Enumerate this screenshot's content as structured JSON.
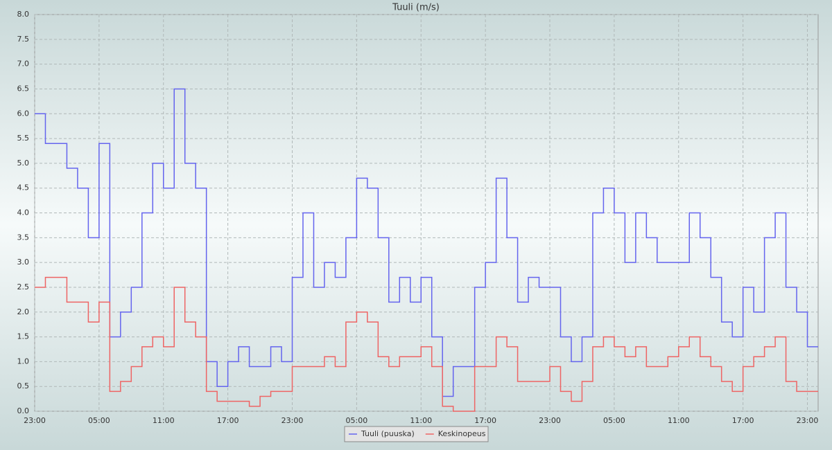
{
  "chart_data": {
    "type": "step",
    "title": "Tuuli (m/s)",
    "x": [
      0,
      1,
      2,
      3,
      4,
      5,
      6,
      7,
      8,
      9,
      10,
      11,
      12,
      13,
      14,
      15,
      16,
      17,
      18,
      19,
      20,
      21,
      22,
      23,
      24,
      25,
      26,
      27,
      28,
      29,
      30,
      31,
      32,
      33,
      34,
      35,
      36,
      37,
      38,
      39,
      40,
      41,
      42,
      43,
      44,
      45,
      46,
      47,
      48,
      49,
      50,
      51,
      52,
      53,
      54,
      55,
      56,
      57,
      58,
      59,
      60,
      61,
      62,
      63,
      64,
      65,
      66,
      67,
      68,
      69,
      70,
      71,
      72
    ],
    "series": [
      {
        "name": "Tuuli (puuska)",
        "color": "#6464ee",
        "values": [
          6.0,
          5.4,
          5.4,
          4.9,
          4.5,
          3.5,
          5.4,
          1.5,
          2.0,
          2.5,
          4.0,
          5.0,
          4.5,
          6.5,
          5.0,
          4.5,
          1.0,
          0.5,
          1.0,
          1.3,
          0.9,
          0.9,
          1.3,
          1.0,
          2.7,
          4.0,
          2.5,
          3.0,
          2.7,
          3.5,
          4.7,
          4.5,
          3.5,
          2.2,
          2.7,
          2.2,
          2.7,
          1.5,
          0.3,
          0.9,
          0.9,
          2.5,
          3.0,
          4.7,
          3.5,
          2.2,
          2.7,
          2.5,
          2.5,
          1.5,
          1.0,
          1.5,
          4.0,
          4.5,
          4.0,
          3.0,
          4.0,
          3.5,
          3.0,
          3.0,
          3.0,
          4.0,
          3.5,
          2.7,
          1.8,
          1.5,
          2.5,
          2.0,
          3.5,
          4.0,
          2.5,
          2.0,
          1.3
        ]
      },
      {
        "name": "Keskinopeus",
        "color": "#ee6464",
        "values": [
          2.5,
          2.7,
          2.7,
          2.2,
          2.2,
          1.8,
          2.2,
          0.4,
          0.6,
          0.9,
          1.3,
          1.5,
          1.3,
          2.5,
          1.8,
          1.5,
          0.4,
          0.2,
          0.2,
          0.2,
          0.1,
          0.3,
          0.4,
          0.4,
          0.9,
          0.9,
          0.9,
          1.1,
          0.9,
          1.8,
          2.0,
          1.8,
          1.1,
          0.9,
          1.1,
          1.1,
          1.3,
          0.9,
          0.1,
          0.0,
          0.0,
          0.9,
          0.9,
          1.5,
          1.3,
          0.6,
          0.6,
          0.6,
          0.9,
          0.4,
          0.2,
          0.6,
          1.3,
          1.5,
          1.3,
          1.1,
          1.3,
          0.9,
          0.9,
          1.1,
          1.3,
          1.5,
          1.1,
          0.9,
          0.6,
          0.4,
          0.9,
          1.1,
          1.3,
          1.5,
          0.6,
          0.4,
          0.4
        ]
      }
    ],
    "xlim": [
      0,
      73
    ],
    "xticks": [
      {
        "value": 0,
        "label": "23:00"
      },
      {
        "value": 6,
        "label": "05:00"
      },
      {
        "value": 12,
        "label": "11:00"
      },
      {
        "value": 18,
        "label": "17:00"
      },
      {
        "value": 24,
        "label": "23:00"
      },
      {
        "value": 30,
        "label": "05:00"
      },
      {
        "value": 36,
        "label": "11:00"
      },
      {
        "value": 42,
        "label": "17:00"
      },
      {
        "value": 48,
        "label": "23:00"
      },
      {
        "value": 54,
        "label": "05:00"
      },
      {
        "value": 60,
        "label": "11:00"
      },
      {
        "value": 66,
        "label": "17:00"
      },
      {
        "value": 72,
        "label": "23:00"
      }
    ],
    "ylim": [
      0,
      8
    ],
    "yticks": [
      {
        "value": 0,
        "label": "0.0"
      },
      {
        "value": 0.5,
        "label": "0.5"
      },
      {
        "value": 1,
        "label": "1.0"
      },
      {
        "value": 1.5,
        "label": "1.5"
      },
      {
        "value": 2,
        "label": "2.0"
      },
      {
        "value": 2.5,
        "label": "2.5"
      },
      {
        "value": 3,
        "label": "3.0"
      },
      {
        "value": 3.5,
        "label": "3.5"
      },
      {
        "value": 4,
        "label": "4.0"
      },
      {
        "value": 4.5,
        "label": "4.5"
      },
      {
        "value": 5,
        "label": "5.0"
      },
      {
        "value": 5.5,
        "label": "5.5"
      },
      {
        "value": 6,
        "label": "6.0"
      },
      {
        "value": 6.5,
        "label": "6.5"
      },
      {
        "value": 7,
        "label": "7.0"
      },
      {
        "value": 7.5,
        "label": "7.5"
      },
      {
        "value": 8,
        "label": "8.0"
      }
    ],
    "grid": true
  }
}
